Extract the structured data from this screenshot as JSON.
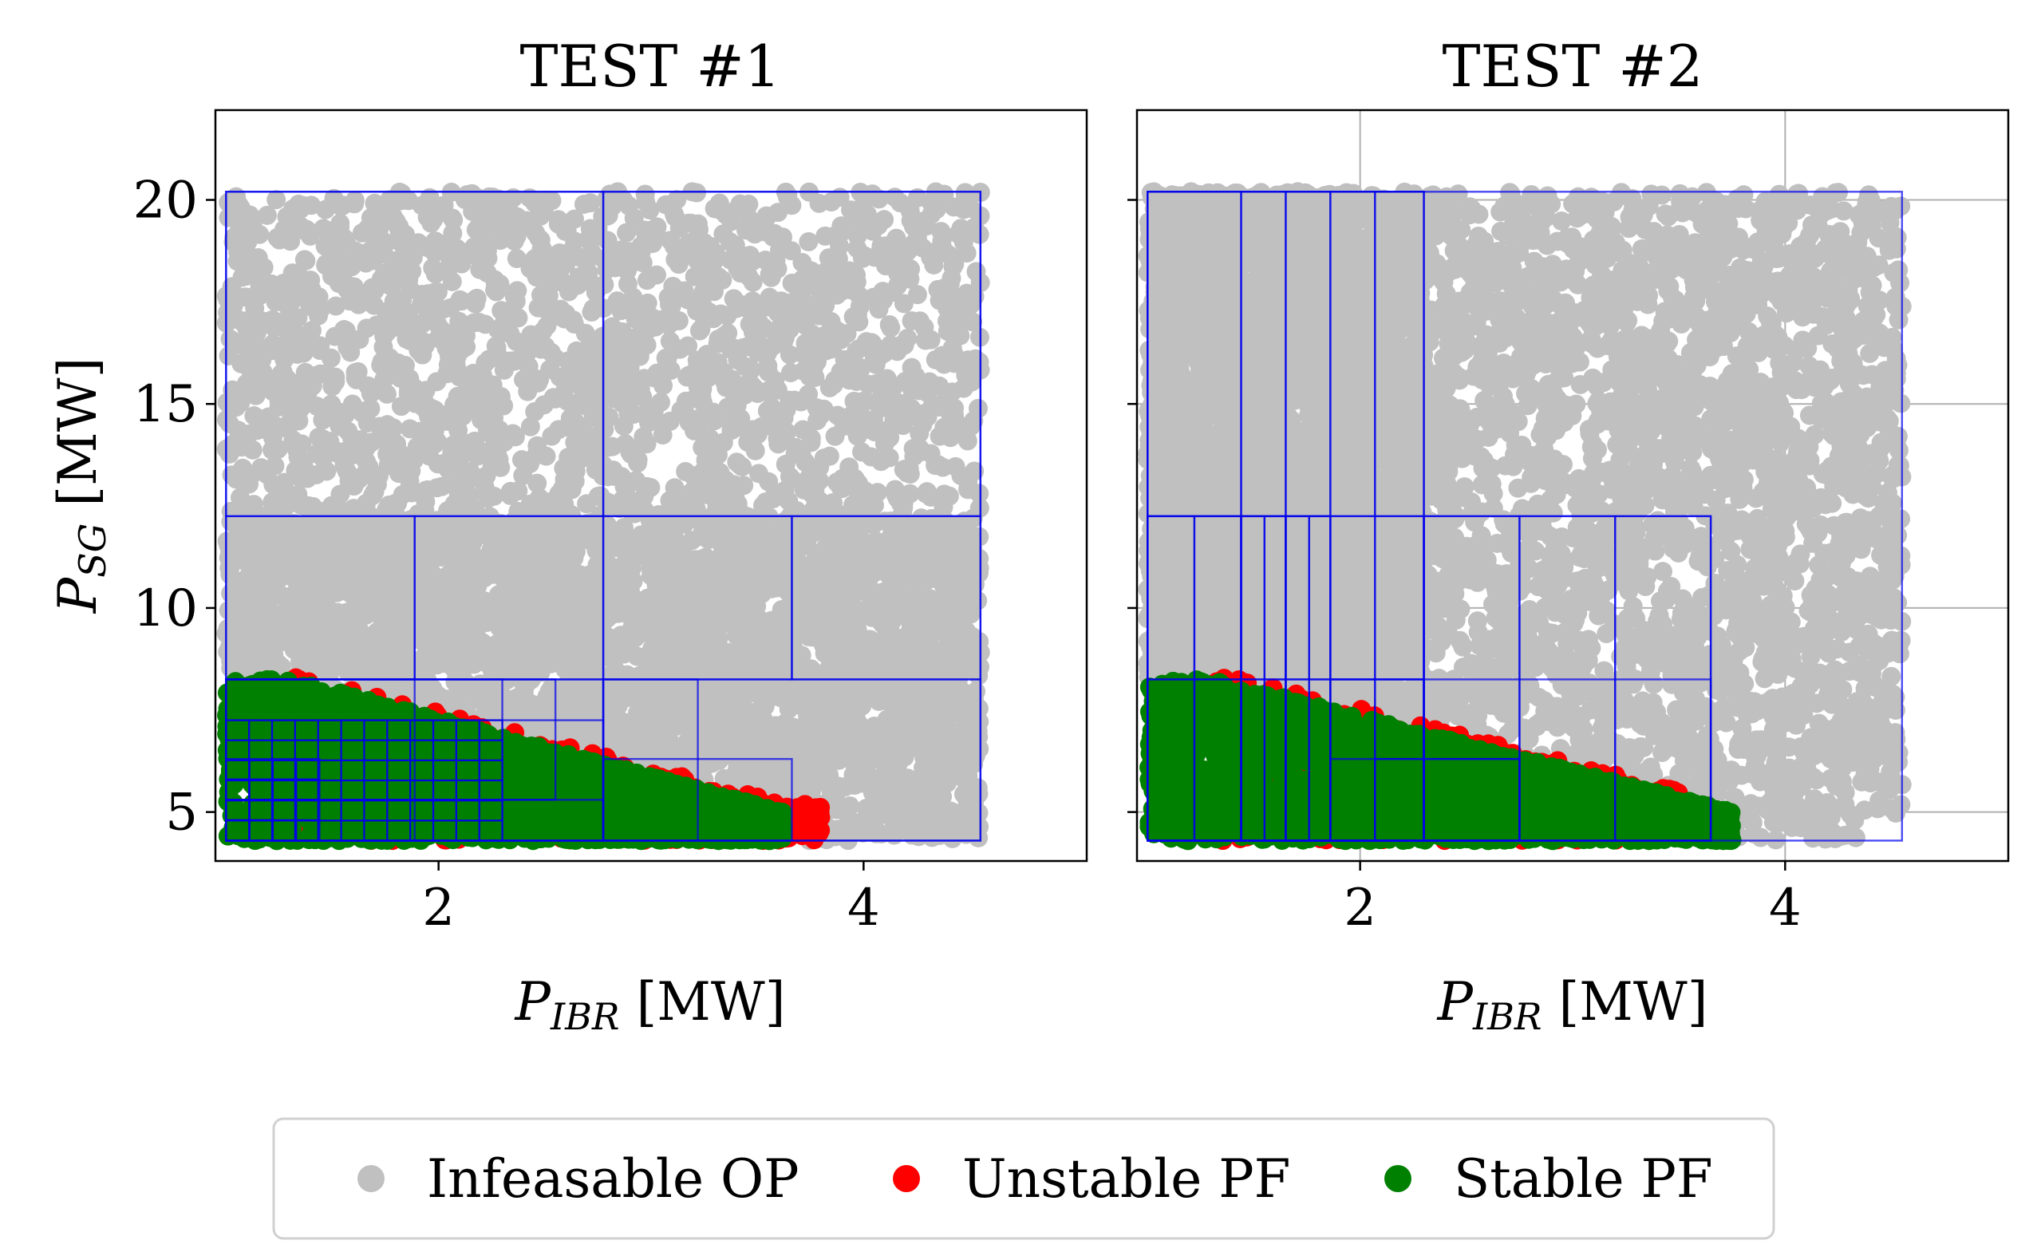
{
  "chart_data": [
    {
      "type": "scatter",
      "title": "TEST #1",
      "xlabel": "P_IBR [MW]",
      "ylabel": "P_SG [MW]",
      "xlabel_main": "P",
      "xlabel_sub": "IBR",
      "xlabel_unit": " [MW]",
      "ylabel_main": "P",
      "ylabel_sub": "SG",
      "ylabel_unit": " [MW]",
      "xlim": [
        0.95,
        5.05
      ],
      "ylim": [
        3.8,
        22.2
      ],
      "xticks": [
        2,
        4
      ],
      "yticks": [
        5,
        10,
        15,
        20
      ],
      "grid": false,
      "show_ylabel": true,
      "show_ytick_labels": true,
      "domain": {
        "x": [
          1.0,
          4.55
        ],
        "y": [
          4.3,
          20.2
        ]
      },
      "series": [
        {
          "name": "Infeasable OP",
          "color": "#c0c0c0"
        },
        {
          "name": "Unstable PF",
          "color": "#ff0000"
        },
        {
          "name": "Stable PF",
          "color": "#008000"
        }
      ],
      "stable_region": {
        "x0": 1.0,
        "x1": 3.62,
        "y_bottom": 4.3,
        "y_top_left": 8.25,
        "y_top_right": 5.0,
        "x_plateau": 1.3
      },
      "unstable_extra": {
        "x_end": 3.8
      },
      "boxes": [
        [
          1.0,
          4.55,
          4.3,
          20.2
        ],
        [
          1.0,
          2.775,
          12.25,
          20.2
        ],
        [
          2.775,
          4.55,
          12.25,
          20.2
        ],
        [
          1.0,
          1.8875,
          8.25,
          12.25
        ],
        [
          1.8875,
          2.775,
          8.25,
          12.25
        ],
        [
          2.775,
          3.6625,
          8.25,
          12.25
        ],
        [
          3.6625,
          4.55,
          8.25,
          12.25
        ],
        [
          2.775,
          4.55,
          4.3,
          8.25
        ],
        [
          2.775,
          3.22,
          4.3,
          8.25
        ],
        [
          2.775,
          3.6625,
          4.3,
          6.3
        ],
        [
          1.0,
          2.775,
          4.3,
          8.25
        ],
        [
          1.0,
          2.775,
          4.3,
          7.25
        ],
        [
          1.0,
          2.775,
          4.3,
          5.3
        ],
        [
          1.0,
          2.3,
          4.3,
          8.25
        ],
        [
          1.0,
          1.8875,
          4.3,
          8.25
        ],
        [
          1.0,
          2.55,
          5.3,
          8.25
        ]
      ],
      "grid_boxes": [
        {
          "x0": 1.0,
          "x1": 2.3,
          "y0": 4.3,
          "y1": 7.25,
          "nx": 12,
          "ny": 6
        },
        {
          "x0": 1.0,
          "x1": 1.44,
          "y0": 4.3,
          "y1": 6.3,
          "nx": 4,
          "ny": 4
        },
        {
          "x0": 1.0,
          "x1": 1.22,
          "y0": 4.3,
          "y1": 5.3,
          "nx": 2,
          "ny": 2
        }
      ]
    },
    {
      "type": "scatter",
      "title": "TEST #2",
      "xlabel": "P_IBR [MW]",
      "ylabel": "",
      "xlabel_main": "P",
      "xlabel_sub": "IBR",
      "xlabel_unit": " [MW]",
      "xlim": [
        0.95,
        5.05
      ],
      "ylim": [
        3.8,
        22.2
      ],
      "xticks": [
        2,
        4
      ],
      "yticks": [
        5,
        10,
        15,
        20
      ],
      "grid": true,
      "show_ylabel": false,
      "show_ytick_labels": false,
      "domain": {
        "x": [
          1.0,
          4.55
        ],
        "y": [
          4.3,
          20.2
        ]
      },
      "series": [
        {
          "name": "Infeasable OP",
          "color": "#c0c0c0"
        },
        {
          "name": "Unstable PF",
          "color": "#ff0000"
        },
        {
          "name": "Stable PF",
          "color": "#008000"
        }
      ],
      "stable_region": {
        "x0": 1.0,
        "x1": 3.75,
        "y_bottom": 4.3,
        "y_top_left": 8.25,
        "y_top_right": 5.0,
        "x_plateau": 1.3
      },
      "unstable_extra": {
        "x_end": 3.5
      },
      "boxes": [
        [
          1.0,
          4.55,
          4.3,
          20.2
        ],
        [
          1.0,
          2.3,
          4.3,
          20.2
        ],
        [
          1.0,
          1.44,
          4.3,
          20.2
        ],
        [
          1.44,
          1.65,
          4.3,
          20.2
        ],
        [
          1.65,
          1.86,
          4.3,
          20.2
        ],
        [
          1.86,
          2.07,
          4.3,
          20.2
        ],
        [
          2.07,
          2.3,
          4.3,
          20.2
        ],
        [
          1.0,
          3.65,
          4.3,
          12.25
        ],
        [
          1.0,
          2.3,
          4.3,
          12.25
        ],
        [
          1.0,
          1.22,
          4.3,
          12.25
        ],
        [
          1.22,
          1.44,
          4.3,
          12.25
        ],
        [
          1.44,
          1.55,
          4.3,
          12.25
        ],
        [
          1.55,
          1.65,
          4.3,
          12.25
        ],
        [
          1.65,
          1.76,
          4.3,
          12.25
        ],
        [
          1.76,
          1.86,
          4.3,
          12.25
        ],
        [
          2.3,
          2.75,
          4.3,
          12.25
        ],
        [
          2.75,
          3.2,
          4.3,
          12.25
        ],
        [
          3.2,
          3.65,
          4.3,
          12.25
        ],
        [
          1.0,
          3.65,
          4.3,
          8.25
        ],
        [
          1.0,
          2.3,
          4.3,
          8.25
        ],
        [
          1.86,
          2.3,
          4.3,
          8.25
        ],
        [
          1.86,
          2.75,
          4.3,
          6.3
        ],
        [
          2.07,
          2.75,
          4.3,
          6.3
        ]
      ],
      "grid_boxes": []
    }
  ],
  "legend": {
    "items": [
      {
        "label": "Infeasable OP",
        "color": "#c0c0c0"
      },
      {
        "label": "Unstable PF",
        "color": "#ff0000"
      },
      {
        "label": "Stable PF",
        "color": "#008000"
      }
    ]
  }
}
